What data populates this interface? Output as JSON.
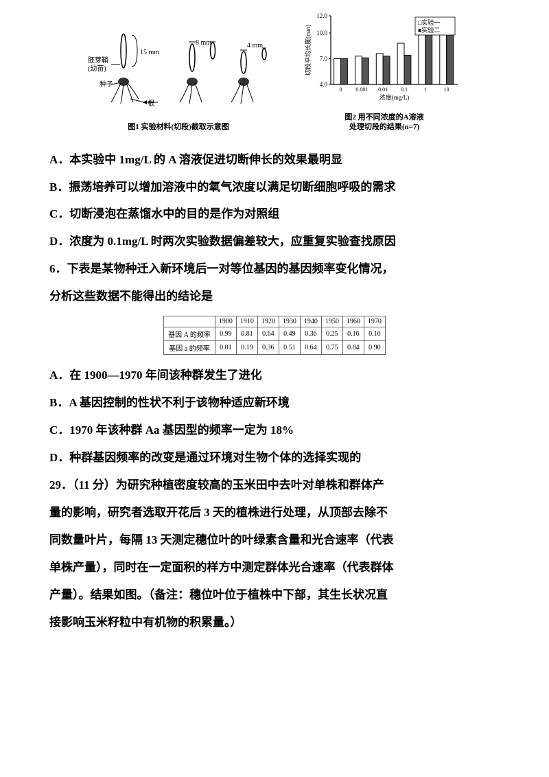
{
  "figure1": {
    "labels": {
      "embryo": "胚芽鞘\n(幼苗)",
      "seed": "种子",
      "root": "根",
      "dim_15mm": "15 mm",
      "dim_8mm": "8 mm",
      "dim_4mm": "4 mm"
    },
    "caption": "图1 实验材料(切段)截取示意图"
  },
  "figure2": {
    "type": "bar",
    "categories": [
      "0",
      "0.001",
      "0.01",
      "0.1",
      "1",
      "10"
    ],
    "series": [
      {
        "name": "实验一",
        "color": "#ffffff",
        "values": [
          7.0,
          7.3,
          7.6,
          8.8,
          11.5,
          10.4
        ]
      },
      {
        "name": "实验二",
        "color": "#555555",
        "values": [
          7.0,
          7.1,
          7.3,
          7.4,
          11.8,
          10.7
        ]
      }
    ],
    "y_axis_label": "切段平均长度(mm)",
    "x_axis_label": "浓度(mg/L)",
    "ylim": [
      4.0,
      12.0
    ],
    "yticks": [
      4.0,
      7.0,
      10.0,
      12.0
    ],
    "legend_labels": {
      "s1": "实验一",
      "s2": "实验二"
    },
    "legend_prefix": {
      "open": "□",
      "filled": "■"
    },
    "caption": "图2 用不同浓度的A溶液\n处理切段的结果(n=7)",
    "bar_stroke": "#000000",
    "background": "#ffffff",
    "axis_color": "#000000",
    "label_fontsize": 9
  },
  "options5": {
    "A": "A．本实验中 1mg/L 的 A 溶液促进切断伸长的效果最明显",
    "B": "B．振荡培养可以增加溶液中的氧气浓度以满足切断细胞呼吸的需求",
    "C": "C．切断浸泡在蒸馏水中的目的是作为对照组",
    "D": "D．浓度为 0.1mg/L 时两次实验数据偏差较大，应重复实验查找原因"
  },
  "q6": {
    "stem1": "6．下表是某物种迁入新环境后一对等位基因的基因频率变化情况，",
    "stem2": "分析这些数据不能得出的结论是"
  },
  "allele_table": {
    "years": [
      "1900",
      "1910",
      "1920",
      "1930",
      "1940",
      "1950",
      "1960",
      "1970"
    ],
    "row_A_label": "基因 A 的频率",
    "row_A": [
      "0.99",
      "0.81",
      "0.64",
      "0.49",
      "0.36",
      "0.25",
      "0.16",
      "0.10"
    ],
    "row_a_label": "基因 a 的频率",
    "row_a": [
      "0.01",
      "0.19",
      "0.36",
      "0.51",
      "0.64",
      "0.75",
      "0.84",
      "0.90"
    ]
  },
  "options6": {
    "A": "A．在 1900—1970 年间该种群发生了进化",
    "B": "B．A 基因控制的性状不利于该物种适应新环境",
    "C": "C．1970 年该种群 Aa 基因型的频率一定为 18%",
    "D": "D．种群基因频率的改变是通过环境对生物个体的选择实现的"
  },
  "q29": {
    "l1": "29．（11 分）为研究种植密度较高的玉米田中去叶对单株和群体产",
    "l2": "量的影响，研究者选取开花后 3 天的植株进行处理，从顶部去除不",
    "l3": "同数量叶片，每隔 13 天测定穗位叶的叶绿素含量和光合速率（代表",
    "l4": "单株产量），同时在一定面积的样方中测定群体光合速率（代表群体",
    "l5": "产量）。结果如图。（备注：穗位叶位于植株中下部，其生长状况直",
    "l6": "接影响玉米籽粒中有机物的积累量。）"
  }
}
